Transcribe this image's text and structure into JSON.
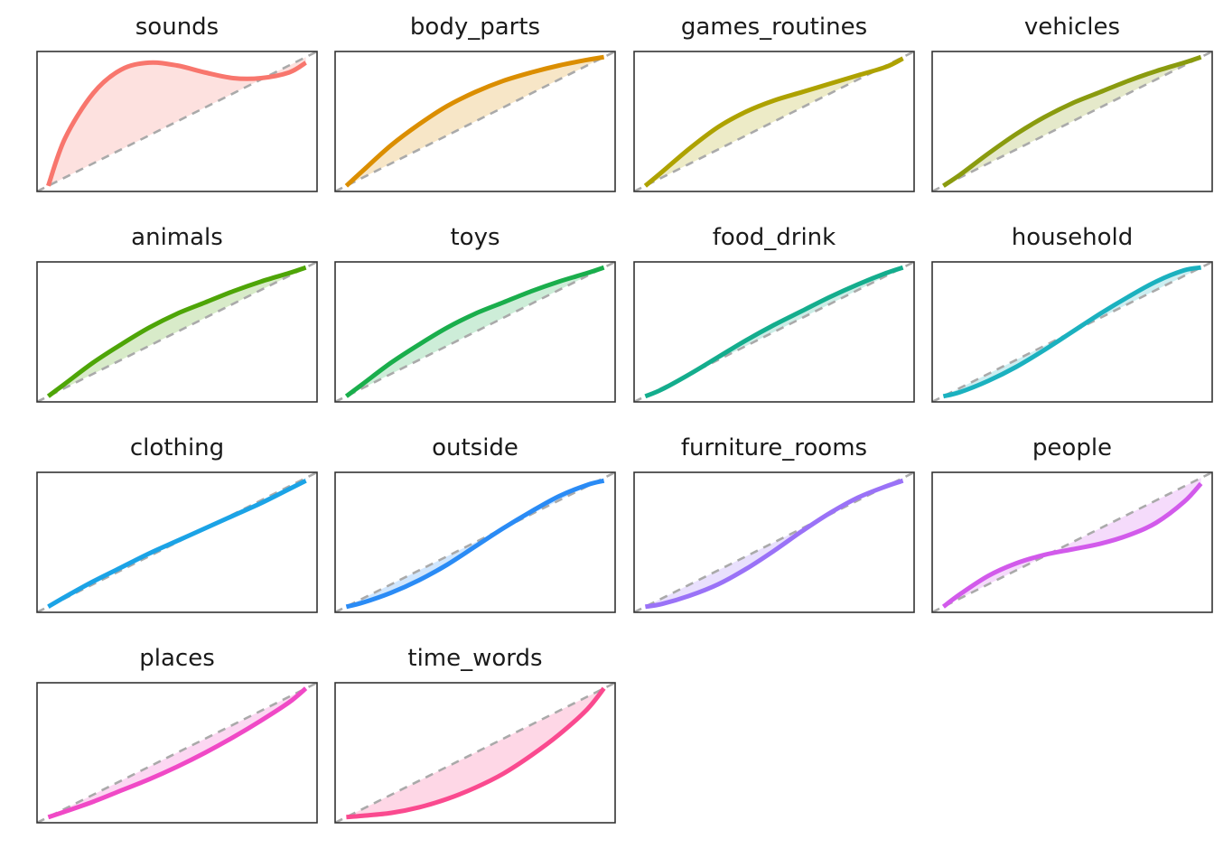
{
  "chart_data": {
    "type": "small-multiples-line",
    "layout": {
      "columns": 4,
      "rows": 4
    },
    "xlim": [
      0,
      1
    ],
    "ylim": [
      0,
      1
    ],
    "reference_line": "y = x (dashed grey diagonal)",
    "grid": false,
    "legend": "none",
    "panels": [
      {
        "title": "sounds",
        "color": "#F8766D",
        "x": [
          0.04,
          0.1,
          0.2,
          0.3,
          0.4,
          0.5,
          0.6,
          0.7,
          0.8,
          0.9,
          0.96
        ],
        "y": [
          0.04,
          0.38,
          0.7,
          0.87,
          0.92,
          0.9,
          0.85,
          0.81,
          0.81,
          0.85,
          0.92
        ]
      },
      {
        "title": "body_parts",
        "color": "#DB8E00",
        "x": [
          0.04,
          0.1,
          0.2,
          0.3,
          0.4,
          0.5,
          0.6,
          0.7,
          0.8,
          0.9,
          0.96
        ],
        "y": [
          0.04,
          0.15,
          0.33,
          0.48,
          0.61,
          0.71,
          0.79,
          0.85,
          0.9,
          0.94,
          0.96
        ]
      },
      {
        "title": "games_routines",
        "color": "#AEA200",
        "x": [
          0.04,
          0.1,
          0.2,
          0.3,
          0.4,
          0.5,
          0.6,
          0.7,
          0.8,
          0.9,
          0.96
        ],
        "y": [
          0.04,
          0.14,
          0.31,
          0.46,
          0.57,
          0.65,
          0.71,
          0.77,
          0.83,
          0.89,
          0.95
        ]
      },
      {
        "title": "vehicles",
        "color": "#8A9B0F",
        "x": [
          0.04,
          0.1,
          0.2,
          0.3,
          0.4,
          0.5,
          0.6,
          0.7,
          0.8,
          0.9,
          0.96
        ],
        "y": [
          0.04,
          0.12,
          0.27,
          0.41,
          0.53,
          0.63,
          0.71,
          0.79,
          0.86,
          0.92,
          0.96
        ]
      },
      {
        "title": "animals",
        "color": "#4EA507",
        "x": [
          0.04,
          0.1,
          0.2,
          0.3,
          0.4,
          0.5,
          0.6,
          0.7,
          0.8,
          0.9,
          0.96
        ],
        "y": [
          0.04,
          0.13,
          0.28,
          0.41,
          0.53,
          0.63,
          0.71,
          0.79,
          0.86,
          0.92,
          0.96
        ]
      },
      {
        "title": "toys",
        "color": "#1AAE4C",
        "x": [
          0.04,
          0.1,
          0.2,
          0.3,
          0.4,
          0.5,
          0.6,
          0.7,
          0.8,
          0.9,
          0.96
        ],
        "y": [
          0.04,
          0.13,
          0.28,
          0.41,
          0.53,
          0.63,
          0.71,
          0.79,
          0.86,
          0.92,
          0.96
        ]
      },
      {
        "title": "food_drink",
        "color": "#14AD8D",
        "x": [
          0.04,
          0.1,
          0.2,
          0.3,
          0.4,
          0.5,
          0.6,
          0.7,
          0.8,
          0.9,
          0.96
        ],
        "y": [
          0.04,
          0.09,
          0.2,
          0.32,
          0.44,
          0.55,
          0.65,
          0.75,
          0.84,
          0.92,
          0.96
        ]
      },
      {
        "title": "household",
        "color": "#1BB1BF",
        "x": [
          0.04,
          0.1,
          0.2,
          0.3,
          0.4,
          0.5,
          0.6,
          0.7,
          0.8,
          0.9,
          0.96
        ],
        "y": [
          0.04,
          0.07,
          0.15,
          0.25,
          0.37,
          0.5,
          0.63,
          0.75,
          0.86,
          0.94,
          0.96
        ]
      },
      {
        "title": "clothing",
        "color": "#1BA3E6",
        "x": [
          0.04,
          0.1,
          0.2,
          0.3,
          0.4,
          0.5,
          0.6,
          0.7,
          0.8,
          0.9,
          0.96
        ],
        "y": [
          0.04,
          0.11,
          0.22,
          0.32,
          0.42,
          0.51,
          0.6,
          0.69,
          0.78,
          0.88,
          0.94
        ]
      },
      {
        "title": "outside",
        "color": "#2A8BF5",
        "x": [
          0.04,
          0.1,
          0.2,
          0.3,
          0.4,
          0.5,
          0.6,
          0.7,
          0.8,
          0.9,
          0.96
        ],
        "y": [
          0.04,
          0.07,
          0.14,
          0.23,
          0.34,
          0.47,
          0.6,
          0.72,
          0.83,
          0.91,
          0.94
        ]
      },
      {
        "title": "furniture_rooms",
        "color": "#9A72F7",
        "x": [
          0.04,
          0.1,
          0.2,
          0.3,
          0.4,
          0.5,
          0.6,
          0.7,
          0.8,
          0.9,
          0.96
        ],
        "y": [
          0.04,
          0.06,
          0.12,
          0.2,
          0.31,
          0.44,
          0.58,
          0.71,
          0.82,
          0.9,
          0.94
        ]
      },
      {
        "title": "people",
        "color": "#D25AEB",
        "x": [
          0.04,
          0.1,
          0.2,
          0.3,
          0.4,
          0.5,
          0.6,
          0.7,
          0.8,
          0.9,
          0.96
        ],
        "y": [
          0.04,
          0.13,
          0.26,
          0.35,
          0.41,
          0.45,
          0.49,
          0.55,
          0.64,
          0.79,
          0.92
        ]
      },
      {
        "title": "places",
        "color": "#F049C6",
        "x": [
          0.04,
          0.1,
          0.2,
          0.3,
          0.4,
          0.5,
          0.6,
          0.7,
          0.8,
          0.9,
          0.96
        ],
        "y": [
          0.04,
          0.08,
          0.15,
          0.23,
          0.31,
          0.4,
          0.5,
          0.61,
          0.73,
          0.86,
          0.96
        ]
      },
      {
        "title": "time_words",
        "color": "#FA4A8F",
        "x": [
          0.04,
          0.1,
          0.2,
          0.3,
          0.4,
          0.5,
          0.6,
          0.7,
          0.8,
          0.9,
          0.96
        ],
        "y": [
          0.04,
          0.05,
          0.07,
          0.11,
          0.17,
          0.25,
          0.35,
          0.48,
          0.63,
          0.81,
          0.96
        ]
      }
    ]
  }
}
